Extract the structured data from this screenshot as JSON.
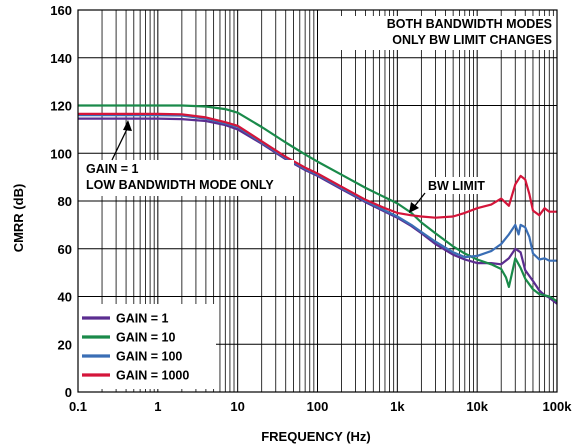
{
  "chart_data": {
    "type": "line",
    "xlabel": "FREQUENCY (Hz)",
    "ylabel": "CMRR (dB)",
    "xscale": "log",
    "xlim": [
      0.1,
      100000
    ],
    "ylim": [
      0,
      160
    ],
    "grid": true,
    "x_tick_labels": [
      "0.1",
      "1",
      "10",
      "100",
      "1k",
      "10k",
      "100k"
    ],
    "x_tick_values": [
      0.1,
      1,
      10,
      100,
      1000,
      10000,
      100000
    ],
    "y_tick_labels": [
      "0",
      "20",
      "40",
      "60",
      "80",
      "100",
      "120",
      "140",
      "160"
    ],
    "y_tick_values": [
      0,
      20,
      40,
      60,
      80,
      100,
      120,
      140,
      160
    ],
    "legend_position": "bottom-left",
    "annotations": {
      "top_right_line1": "BOTH BANDWIDTH MODES",
      "top_right_line2": "ONLY BW LIMIT CHANGES",
      "gain1_line1": "GAIN = 1",
      "gain1_line2": "LOW BANDWIDTH MODE ONLY",
      "bw_limit": "BW LIMIT"
    },
    "series": [
      {
        "name": "GAIN = 1",
        "color": "#5b2d90",
        "x": [
          0.1,
          0.3,
          1,
          2,
          4,
          7,
          10,
          20,
          40,
          70,
          100,
          200,
          400,
          700,
          1000,
          1500,
          2000,
          3000,
          5000,
          7000,
          10000,
          15000,
          20000,
          25000,
          30000,
          35000,
          40000,
          50000,
          60000,
          70000,
          80000,
          100000
        ],
        "y": [
          114.5,
          114.5,
          114.5,
          114.3,
          113.5,
          111.8,
          110,
          104,
          97.5,
          93,
          90.5,
          85,
          79.5,
          75.5,
          73,
          69.5,
          66.5,
          62,
          57.5,
          55.5,
          54,
          54,
          53.5,
          56,
          60,
          58.5,
          51,
          46.5,
          42.5,
          40.5,
          39.5,
          37
        ]
      },
      {
        "name": "GAIN = 10",
        "color": "#1a8a4a",
        "x": [
          0.1,
          0.3,
          1,
          2,
          4,
          7,
          10,
          20,
          40,
          70,
          100,
          200,
          400,
          700,
          1000,
          1500,
          2000,
          3000,
          5000,
          7000,
          10000,
          15000,
          20000,
          23000,
          25000,
          27000,
          30000,
          35000,
          40000,
          50000,
          60000,
          70000,
          80000,
          100000
        ],
        "y": [
          120,
          120,
          120,
          120,
          119.6,
          118.5,
          117,
          111,
          104.5,
          99.5,
          96.5,
          91,
          85.5,
          81.5,
          79,
          75,
          71,
          66.5,
          61,
          58,
          55.5,
          53.5,
          51.5,
          48,
          44,
          49,
          56,
          52,
          47.5,
          43,
          41,
          40.5,
          40,
          38
        ]
      },
      {
        "name": "GAIN = 100",
        "color": "#3a6eb5",
        "x": [
          0.1,
          0.3,
          1,
          2,
          4,
          7,
          10,
          20,
          40,
          70,
          100,
          200,
          400,
          700,
          1000,
          1500,
          2000,
          3000,
          5000,
          7000,
          10000,
          15000,
          20000,
          25000,
          30000,
          33000,
          35000,
          40000,
          45000,
          50000,
          60000,
          70000,
          80000,
          100000
        ],
        "y": [
          116,
          116,
          116,
          115.8,
          114.5,
          112.5,
          111,
          104.5,
          98,
          93.5,
          91,
          85.5,
          80,
          76,
          73.5,
          70,
          67,
          63,
          58.5,
          56.5,
          57,
          59,
          62,
          66,
          70,
          66,
          70,
          69,
          65,
          58,
          55.5,
          56,
          55,
          55
        ]
      },
      {
        "name": "GAIN = 1000",
        "color": "#d4153a",
        "x": [
          0.1,
          0.3,
          1,
          2,
          4,
          7,
          10,
          20,
          40,
          70,
          100,
          200,
          400,
          700,
          1000,
          1500,
          2000,
          3000,
          5000,
          7000,
          10000,
          15000,
          20000,
          25000,
          30000,
          35000,
          40000,
          45000,
          50000,
          60000,
          70000,
          80000,
          100000
        ],
        "y": [
          116.5,
          116.5,
          116.5,
          116.3,
          115,
          113,
          111.5,
          105,
          98.5,
          94,
          91.5,
          86,
          80.5,
          77,
          75,
          74,
          73.5,
          73,
          73.5,
          75,
          77,
          78.5,
          81,
          78,
          87,
          90.5,
          89,
          83,
          76,
          74,
          77,
          75.5,
          75.5
        ]
      }
    ]
  }
}
